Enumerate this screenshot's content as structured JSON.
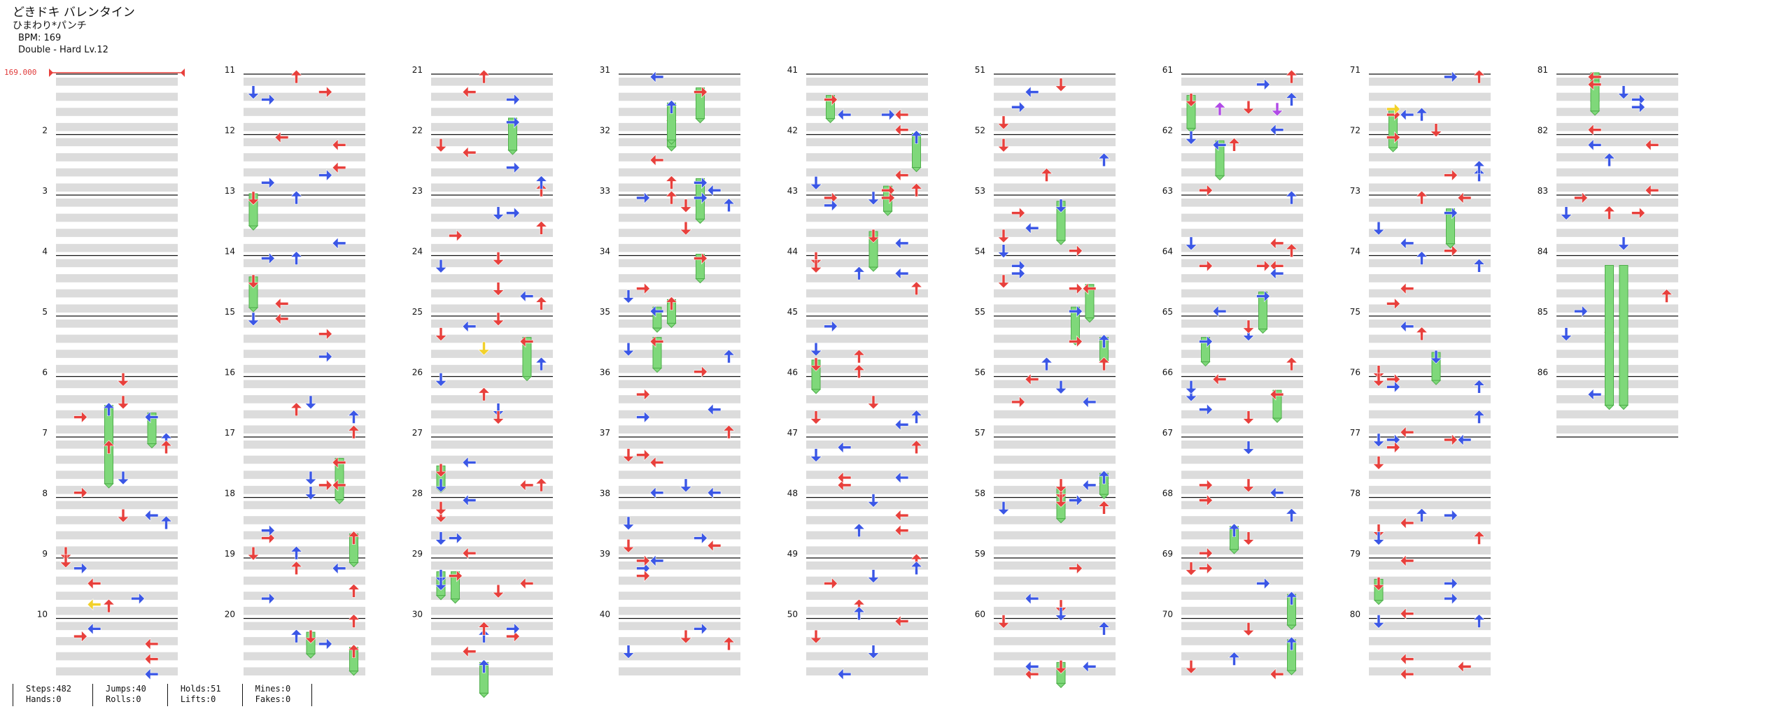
{
  "song": {
    "title": "どきドキ バレンタイン",
    "artist": "ひまわり*パンチ",
    "bpm_text": "BPM: 169",
    "difficulty_text": "Double - Hard  Lv.12"
  },
  "bpm_marker_label": "169.000",
  "colors": {
    "red": "#e8403c",
    "blue": "#3b57e6",
    "green": "#7fd87a",
    "yellow": "#f2d12a",
    "purple": "#b04ae6",
    "band": "#dcdcdc"
  },
  "chart": {
    "measure_numbers": [
      2,
      3,
      4,
      5,
      6,
      7,
      8,
      9,
      10,
      11,
      12,
      13,
      14,
      15,
      16,
      17,
      18,
      19,
      20,
      21,
      22,
      23,
      24,
      25,
      26,
      27,
      28,
      29,
      30,
      31,
      32,
      33,
      34,
      35,
      36,
      37,
      38,
      39,
      40,
      41,
      42,
      43,
      44,
      45,
      46,
      47,
      48,
      49,
      50,
      51,
      52,
      53,
      54,
      55,
      56,
      57,
      58,
      59,
      60,
      61,
      62,
      63,
      64,
      65,
      66,
      67,
      68,
      69,
      70,
      71,
      72,
      73,
      74,
      75,
      76,
      77,
      78,
      79,
      80,
      81,
      82,
      83,
      84,
      85,
      86
    ],
    "total_measures": 86,
    "measures_per_column": 10
  },
  "stats": [
    {
      "a": "Steps:482",
      "b": "Hands:0"
    },
    {
      "a": "Jumps:40",
      "b": "Rolls:0"
    },
    {
      "a": "Holds:51",
      "b": "Lifts:0"
    },
    {
      "a": "Mines:0",
      "b": "Fakes:0"
    }
  ]
}
